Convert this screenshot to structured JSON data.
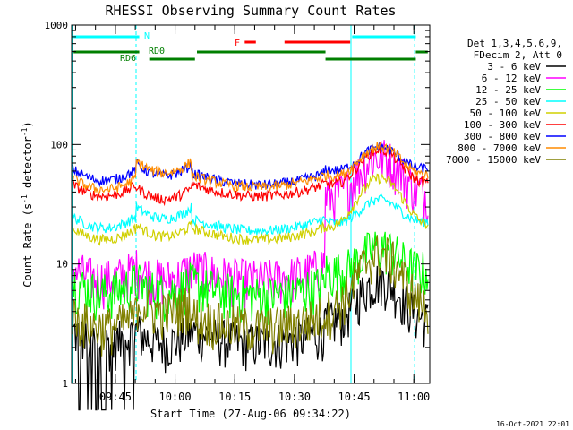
{
  "chart_data": {
    "type": "line",
    "title": "RHESSI Observing Summary Count Rates",
    "xlabel": "Start Time (27-Aug-06 09:34:22)",
    "ylabel_main": "Count Rate (s",
    "ylabel_sup1": "-1",
    "ylabel_mid": " detector",
    "ylabel_sup2": "-1",
    "ylabel_end": ")",
    "y_scale": "log",
    "ylim": [
      1,
      1000
    ],
    "xlim_minutes": [
      0,
      90
    ],
    "x_ticks": [
      {
        "min": 11,
        "label": "09:45"
      },
      {
        "min": 26,
        "label": "10:00"
      },
      {
        "min": 41,
        "label": "10:15"
      },
      {
        "min": 56,
        "label": "10:30"
      },
      {
        "min": 71,
        "label": "10:45"
      },
      {
        "min": 86,
        "label": "11:00"
      }
    ],
    "y_ticks": [
      {
        "value": 1,
        "label": "1"
      },
      {
        "value": 10,
        "label": "10"
      },
      {
        "value": 100,
        "label": "100"
      },
      {
        "value": 1000,
        "label": "1000"
      }
    ],
    "legend_header": [
      "Det 1,3,4,5,6,9,",
      "FDecim 2, Att 0"
    ],
    "legend_placement": "right",
    "series": [
      {
        "name": "3 - 6 keV",
        "color": "#000000"
      },
      {
        "name": "6 - 12 keV",
        "color": "#ff00ff"
      },
      {
        "name": "12 - 25 keV",
        "color": "#00ff00"
      },
      {
        "name": "25 - 50 keV",
        "color": "#00ffff"
      },
      {
        "name": "50 - 100 keV",
        "color": "#d0d000"
      },
      {
        "name": "100 - 300 keV",
        "color": "#ff0000"
      },
      {
        "name": "300 - 800 keV",
        "color": "#0000ff"
      },
      {
        "name": "800 - 7000 keV",
        "color": "#ff8c00"
      },
      {
        "name": "7000 - 15000 keV",
        "color": "#808000"
      }
    ],
    "levels": {
      "3 - 6 keV": {
        "v1": 2.2,
        "v2": 2.2,
        "v3": 2.2,
        "v4": 2.6,
        "peak": 7.0
      },
      "6 - 12 keV": {
        "v1": 7.5,
        "v2": 7.5,
        "v3": 7.5,
        "v4": 30,
        "peak": 75
      },
      "12 - 25 keV": {
        "v1": 5.8,
        "v2": 5.8,
        "v3": 5.5,
        "v4": 7.0,
        "peak": 13
      },
      "25 - 50 keV": {
        "v1": 20,
        "v2": 24,
        "v3": 19,
        "v4": 18,
        "peak": 32
      },
      "50 - 100 keV": {
        "v1": 16,
        "v2": 17,
        "v3": 16,
        "v4": 16,
        "peak": 50
      },
      "100 - 300 keV": {
        "v1": 37,
        "v2": 35,
        "v3": 37,
        "v4": 37,
        "peak": 85
      },
      "300 - 800 keV": {
        "v1": 50,
        "v2": 55,
        "v3": 46,
        "v4": 50,
        "peak": 88
      },
      "800 - 7000 keV": {
        "v1": 42,
        "v2": 58,
        "v3": 44,
        "v4": 44,
        "peak": 90
      },
      "7000 - 15000 keV": {
        "v1": 3.0,
        "v2": 4.0,
        "v3": 3.0,
        "v4": 3.2,
        "peak": 12
      }
    },
    "annotations": {
      "N": "N",
      "F": "F",
      "RD0": "RD0",
      "RD6": "RD6"
    },
    "flag_colors": {
      "N": "#00ffff",
      "F": "#ff0000",
      "RD": "#007f00"
    },
    "timestamp": "16-Oct-2021 22:01"
  }
}
